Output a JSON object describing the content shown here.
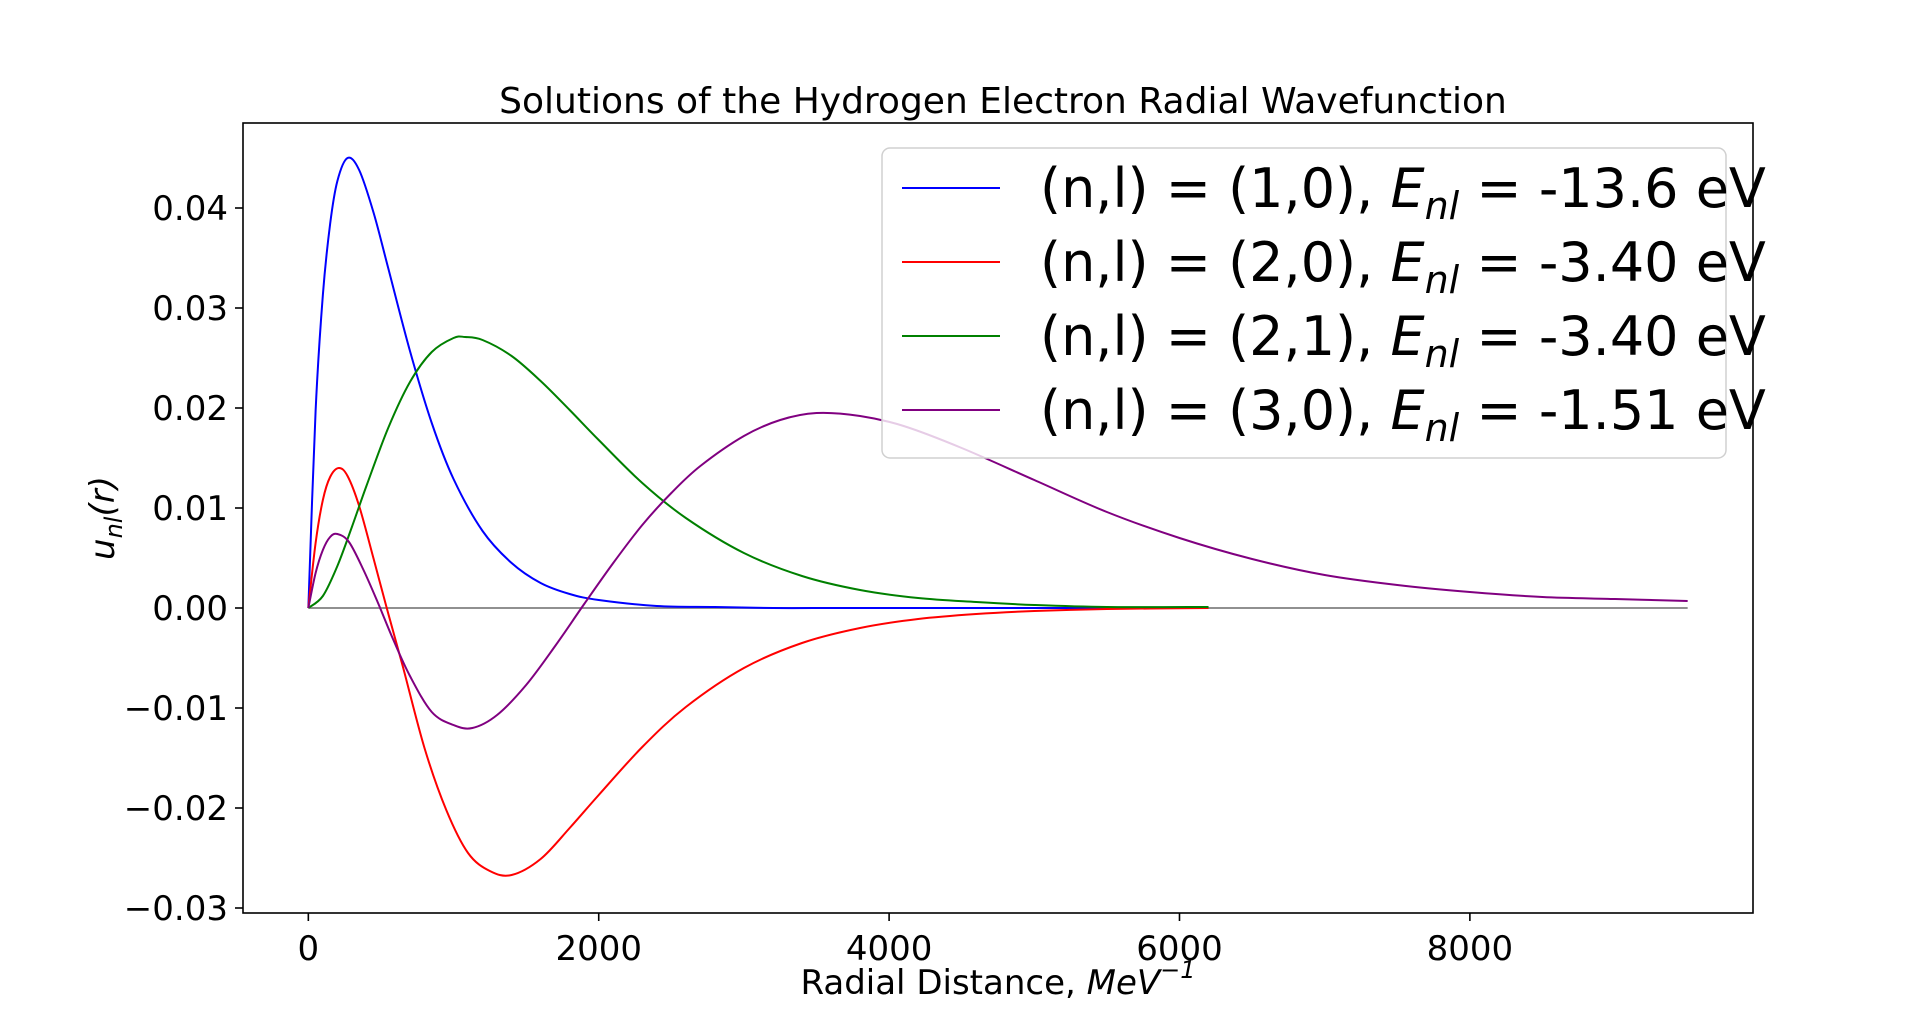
{
  "chart_data": {
    "type": "line",
    "title": "Solutions of the Hydrogen Electron Radial Wavefunction",
    "xlabel": "Radial Distance, ",
    "xlabel_unit": "MeV",
    "xlabel_exp": "−1",
    "ylabel": "u",
    "ylabel_sub": "nl",
    "ylabel_arg": "(r)",
    "xlim": [
      -450,
      9950
    ],
    "ylim": [
      -0.0305,
      0.0485
    ],
    "x_ticks": [
      0,
      2000,
      4000,
      6000,
      8000
    ],
    "x_tick_labels": [
      "0",
      "2000",
      "4000",
      "6000",
      "8000"
    ],
    "y_ticks": [
      -0.03,
      -0.02,
      -0.01,
      0.0,
      0.01,
      0.02,
      0.03,
      0.04
    ],
    "y_tick_labels": [
      "−0.03",
      "−0.02",
      "−0.01",
      "0.00",
      "0.01",
      "0.02",
      "0.03",
      "0.04"
    ],
    "grid": false,
    "legend_position": "top-right",
    "series": [
      {
        "name": "(n,l) = (1,0), E_nl = -13.6 eV",
        "label_prefix": "(n,l) = (1,0), ",
        "label_suffix": " -13.6 eV",
        "color": "#0000ff",
        "x": [
          0,
          50,
          100,
          150,
          200,
          270,
          350,
          450,
          550,
          700,
          850,
          1000,
          1200,
          1400,
          1600,
          1800,
          2000,
          2400,
          2800,
          3200,
          3600,
          4000,
          4500,
          5000,
          5500,
          6200
        ],
        "y": [
          0,
          0.0197,
          0.0313,
          0.0384,
          0.0427,
          0.045,
          0.0438,
          0.0395,
          0.034,
          0.0257,
          0.0185,
          0.0129,
          0.0077,
          0.0045,
          0.0025,
          0.0014,
          0.0008,
          0.0002,
          0.0001,
          0.0,
          0.0,
          0.0,
          0.0,
          0.0,
          0.0,
          0.0
        ]
      },
      {
        "name": "(n,l) = (2,0), E_nl = -3.40 eV",
        "label_prefix": "(n,l) = (2,0), ",
        "label_suffix": " -3.40 eV",
        "color": "#ff0000",
        "x": [
          0,
          50,
          100,
          150,
          210,
          270,
          350,
          450,
          540,
          650,
          800,
          950,
          1100,
          1250,
          1400,
          1600,
          1800,
          2000,
          2300,
          2600,
          3000,
          3400,
          3800,
          4200,
          4600,
          5000,
          5500,
          6200
        ],
        "y": [
          0,
          0.0065,
          0.0108,
          0.0131,
          0.014,
          0.0132,
          0.0102,
          0.0049,
          0.0,
          -0.0058,
          -0.014,
          -0.0202,
          -0.0245,
          -0.0263,
          -0.0267,
          -0.0251,
          -0.022,
          -0.0187,
          -0.0139,
          -0.0099,
          -0.006,
          -0.0035,
          -0.002,
          -0.0011,
          -0.0006,
          -0.0003,
          -0.0001,
          0.0
        ]
      },
      {
        "name": "(n,l) = (2,1), E_nl = -3.40 eV",
        "label_prefix": "(n,l) = (2,1), ",
        "label_suffix": " -3.40 eV",
        "color": "#008000",
        "x": [
          0,
          100,
          200,
          300,
          400,
          550,
          700,
          850,
          1000,
          1080,
          1200,
          1400,
          1600,
          1800,
          2000,
          2300,
          2600,
          3000,
          3400,
          3800,
          4200,
          4600,
          5000,
          5500,
          6200
        ],
        "y": [
          0,
          0.0012,
          0.0042,
          0.0081,
          0.0122,
          0.018,
          0.0226,
          0.0256,
          0.027,
          0.0271,
          0.0268,
          0.0252,
          0.0227,
          0.0198,
          0.0168,
          0.0125,
          0.009,
          0.0055,
          0.0032,
          0.0018,
          0.001,
          0.0006,
          0.0003,
          0.0001,
          0.0001
        ]
      },
      {
        "name": "(n,l) = (3,0), E_nl = -1.51 eV",
        "label_prefix": "(n,l) = (3,0), ",
        "label_suffix": " -1.51 eV",
        "color": "#800080",
        "x": [
          0,
          50,
          100,
          150,
          200,
          280,
          380,
          480,
          580,
          700,
          850,
          1000,
          1130,
          1300,
          1500,
          1700,
          1900,
          2100,
          2300,
          2500,
          2700,
          3000,
          3250,
          3500,
          3800,
          4100,
          4500,
          5000,
          5500,
          6000,
          6500,
          7000,
          7500,
          8000,
          8500,
          9000,
          9500
        ],
        "y": [
          0,
          0.0035,
          0.0058,
          0.0071,
          0.0074,
          0.0066,
          0.0038,
          0.0005,
          -0.003,
          -0.0068,
          -0.0104,
          -0.0117,
          -0.012,
          -0.0107,
          -0.0077,
          -0.0038,
          0.0004,
          0.0045,
          0.0083,
          0.0115,
          0.0142,
          0.0172,
          0.0188,
          0.0195,
          0.0192,
          0.0182,
          0.016,
          0.0128,
          0.0096,
          0.007,
          0.0049,
          0.0033,
          0.0023,
          0.0016,
          0.0011,
          0.0009,
          0.0007
        ]
      }
    ],
    "reference_line": {
      "y": 0,
      "x": [
        0,
        9500
      ],
      "color": "#808080"
    }
  }
}
